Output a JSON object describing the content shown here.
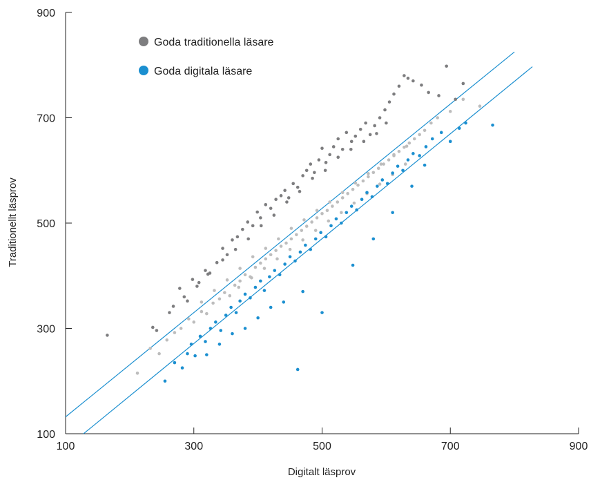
{
  "chart_data": {
    "type": "scatter",
    "title": "",
    "xlabel": "Digitalt läsprov",
    "ylabel": "Traditionellt läsprov",
    "xlim": [
      100,
      900
    ],
    "ylim": [
      100,
      900
    ],
    "x_ticks": [
      "100",
      "300",
      "500",
      "700",
      "900"
    ],
    "y_ticks": [
      "100",
      "300",
      "500",
      "700",
      "900"
    ],
    "grid": false,
    "legend_position": "top-left",
    "reference_lines": [
      {
        "x": [
          100,
          800
        ],
        "y": [
          132,
          825
        ],
        "color": "#1b8fd0"
      },
      {
        "x": [
          128,
          828
        ],
        "y": [
          100,
          797
        ],
        "color": "#1b8fd0"
      }
    ],
    "series": [
      {
        "name": "Goda traditionella läsare",
        "color": "#7d7d7f",
        "points": [
          [
            165,
            287
          ],
          [
            236,
            302
          ],
          [
            242,
            296
          ],
          [
            262,
            330
          ],
          [
            268,
            342
          ],
          [
            278,
            376
          ],
          [
            290,
            352
          ],
          [
            298,
            393
          ],
          [
            308,
            387
          ],
          [
            318,
            410
          ],
          [
            322,
            403
          ],
          [
            336,
            425
          ],
          [
            345,
            452
          ],
          [
            352,
            440
          ],
          [
            360,
            468
          ],
          [
            368,
            474
          ],
          [
            376,
            488
          ],
          [
            384,
            502
          ],
          [
            392,
            495
          ],
          [
            399,
            521
          ],
          [
            404,
            510
          ],
          [
            412,
            535
          ],
          [
            420,
            528
          ],
          [
            428,
            545
          ],
          [
            436,
            552
          ],
          [
            442,
            562
          ],
          [
            448,
            548
          ],
          [
            455,
            575
          ],
          [
            462,
            568
          ],
          [
            470,
            590
          ],
          [
            476,
            600
          ],
          [
            482,
            612
          ],
          [
            488,
            596
          ],
          [
            495,
            620
          ],
          [
            500,
            642
          ],
          [
            506,
            615
          ],
          [
            512,
            630
          ],
          [
            518,
            645
          ],
          [
            525,
            660
          ],
          [
            532,
            640
          ],
          [
            538,
            672
          ],
          [
            546,
            655
          ],
          [
            552,
            665
          ],
          [
            560,
            678
          ],
          [
            568,
            690
          ],
          [
            575,
            668
          ],
          [
            582,
            685
          ],
          [
            590,
            700
          ],
          [
            598,
            715
          ],
          [
            605,
            730
          ],
          [
            612,
            745
          ],
          [
            620,
            760
          ],
          [
            628,
            780
          ],
          [
            634,
            775
          ],
          [
            642,
            770
          ],
          [
            655,
            762
          ],
          [
            666,
            748
          ],
          [
            682,
            742
          ],
          [
            694,
            798
          ],
          [
            720,
            765
          ],
          [
            708,
            735
          ],
          [
            600,
            690
          ],
          [
            585,
            670
          ],
          [
            565,
            655
          ],
          [
            545,
            640
          ],
          [
            525,
            625
          ],
          [
            505,
            600
          ],
          [
            485,
            585
          ],
          [
            465,
            560
          ],
          [
            445,
            540
          ],
          [
            425,
            515
          ],
          [
            405,
            495
          ],
          [
            385,
            470
          ],
          [
            365,
            450
          ],
          [
            345,
            430
          ],
          [
            325,
            405
          ],
          [
            305,
            380
          ],
          [
            285,
            360
          ]
        ]
      },
      {
        "name": "Goda digitala läsare",
        "color": "#1b8fd0",
        "points": [
          [
            255,
            200
          ],
          [
            270,
            235
          ],
          [
            282,
            225
          ],
          [
            290,
            252
          ],
          [
            296,
            270
          ],
          [
            302,
            248
          ],
          [
            310,
            285
          ],
          [
            318,
            275
          ],
          [
            326,
            300
          ],
          [
            334,
            312
          ],
          [
            342,
            296
          ],
          [
            350,
            325
          ],
          [
            358,
            340
          ],
          [
            366,
            330
          ],
          [
            372,
            352
          ],
          [
            380,
            365
          ],
          [
            388,
            358
          ],
          [
            396,
            378
          ],
          [
            404,
            390
          ],
          [
            410,
            372
          ],
          [
            418,
            398
          ],
          [
            426,
            410
          ],
          [
            434,
            402
          ],
          [
            442,
            422
          ],
          [
            450,
            436
          ],
          [
            458,
            428
          ],
          [
            462,
            222
          ],
          [
            466,
            445
          ],
          [
            474,
            458
          ],
          [
            482,
            450
          ],
          [
            490,
            470
          ],
          [
            498,
            482
          ],
          [
            506,
            474
          ],
          [
            514,
            495
          ],
          [
            522,
            508
          ],
          [
            530,
            500
          ],
          [
            538,
            520
          ],
          [
            546,
            532
          ],
          [
            554,
            525
          ],
          [
            562,
            545
          ],
          [
            570,
            558
          ],
          [
            578,
            550
          ],
          [
            586,
            570
          ],
          [
            594,
            582
          ],
          [
            602,
            575
          ],
          [
            610,
            595
          ],
          [
            618,
            608
          ],
          [
            626,
            600
          ],
          [
            634,
            620
          ],
          [
            642,
            632
          ],
          [
            652,
            628
          ],
          [
            662,
            645
          ],
          [
            672,
            660
          ],
          [
            686,
            672
          ],
          [
            700,
            655
          ],
          [
            714,
            680
          ],
          [
            724,
            690
          ],
          [
            766,
            686
          ],
          [
            500,
            330
          ],
          [
            470,
            370
          ],
          [
            440,
            350
          ],
          [
            420,
            340
          ],
          [
            400,
            320
          ],
          [
            380,
            300
          ],
          [
            360,
            290
          ],
          [
            340,
            270
          ],
          [
            320,
            250
          ],
          [
            548,
            420
          ],
          [
            580,
            470
          ],
          [
            610,
            520
          ],
          [
            640,
            570
          ],
          [
            660,
            610
          ]
        ]
      }
    ],
    "background_points_color": "#bdbdbd",
    "background_points": [
      [
        212,
        215
      ],
      [
        232,
        262
      ],
      [
        246,
        252
      ],
      [
        258,
        278
      ],
      [
        270,
        292
      ],
      [
        280,
        300
      ],
      [
        292,
        318
      ],
      [
        300,
        312
      ],
      [
        312,
        332
      ],
      [
        320,
        328
      ],
      [
        330,
        348
      ],
      [
        340,
        356
      ],
      [
        348,
        368
      ],
      [
        356,
        362
      ],
      [
        364,
        382
      ],
      [
        372,
        390
      ],
      [
        380,
        402
      ],
      [
        388,
        398
      ],
      [
        396,
        416
      ],
      [
        404,
        424
      ],
      [
        412,
        432
      ],
      [
        420,
        440
      ],
      [
        428,
        448
      ],
      [
        436,
        456
      ],
      [
        444,
        462
      ],
      [
        452,
        470
      ],
      [
        460,
        478
      ],
      [
        468,
        486
      ],
      [
        476,
        494
      ],
      [
        484,
        502
      ],
      [
        492,
        510
      ],
      [
        500,
        518
      ],
      [
        508,
        524
      ],
      [
        516,
        532
      ],
      [
        524,
        540
      ],
      [
        532,
        548
      ],
      [
        540,
        556
      ],
      [
        548,
        564
      ],
      [
        556,
        572
      ],
      [
        564,
        580
      ],
      [
        572,
        588
      ],
      [
        580,
        596
      ],
      [
        588,
        604
      ],
      [
        596,
        612
      ],
      [
        604,
        620
      ],
      [
        612,
        628
      ],
      [
        620,
        636
      ],
      [
        628,
        644
      ],
      [
        636,
        652
      ],
      [
        644,
        660
      ],
      [
        652,
        668
      ],
      [
        660,
        676
      ],
      [
        670,
        690
      ],
      [
        680,
        700
      ],
      [
        700,
        712
      ],
      [
        720,
        735
      ],
      [
        746,
        722
      ],
      [
        412,
        452
      ],
      [
        432,
        470
      ],
      [
        452,
        490
      ],
      [
        472,
        506
      ],
      [
        492,
        524
      ],
      [
        512,
        540
      ],
      [
        532,
        558
      ],
      [
        552,
        576
      ],
      [
        572,
        594
      ],
      [
        592,
        612
      ],
      [
        612,
        630
      ],
      [
        632,
        646
      ],
      [
        392,
        436
      ],
      [
        372,
        414
      ],
      [
        352,
        392
      ],
      [
        332,
        372
      ],
      [
        312,
        350
      ],
      [
        470,
        468
      ],
      [
        490,
        486
      ],
      [
        510,
        504
      ],
      [
        530,
        520
      ],
      [
        550,
        538
      ],
      [
        570,
        556
      ],
      [
        590,
        574
      ],
      [
        610,
        592
      ],
      [
        630,
        612
      ],
      [
        450,
        450
      ],
      [
        430,
        432
      ],
      [
        410,
        414
      ],
      [
        390,
        396
      ],
      [
        370,
        378
      ]
    ],
    "legend": [
      {
        "label": "Goda traditionella läsare",
        "color": "#7d7d7f"
      },
      {
        "label": "Goda digitala läsare",
        "color": "#1b8fd0"
      }
    ]
  }
}
